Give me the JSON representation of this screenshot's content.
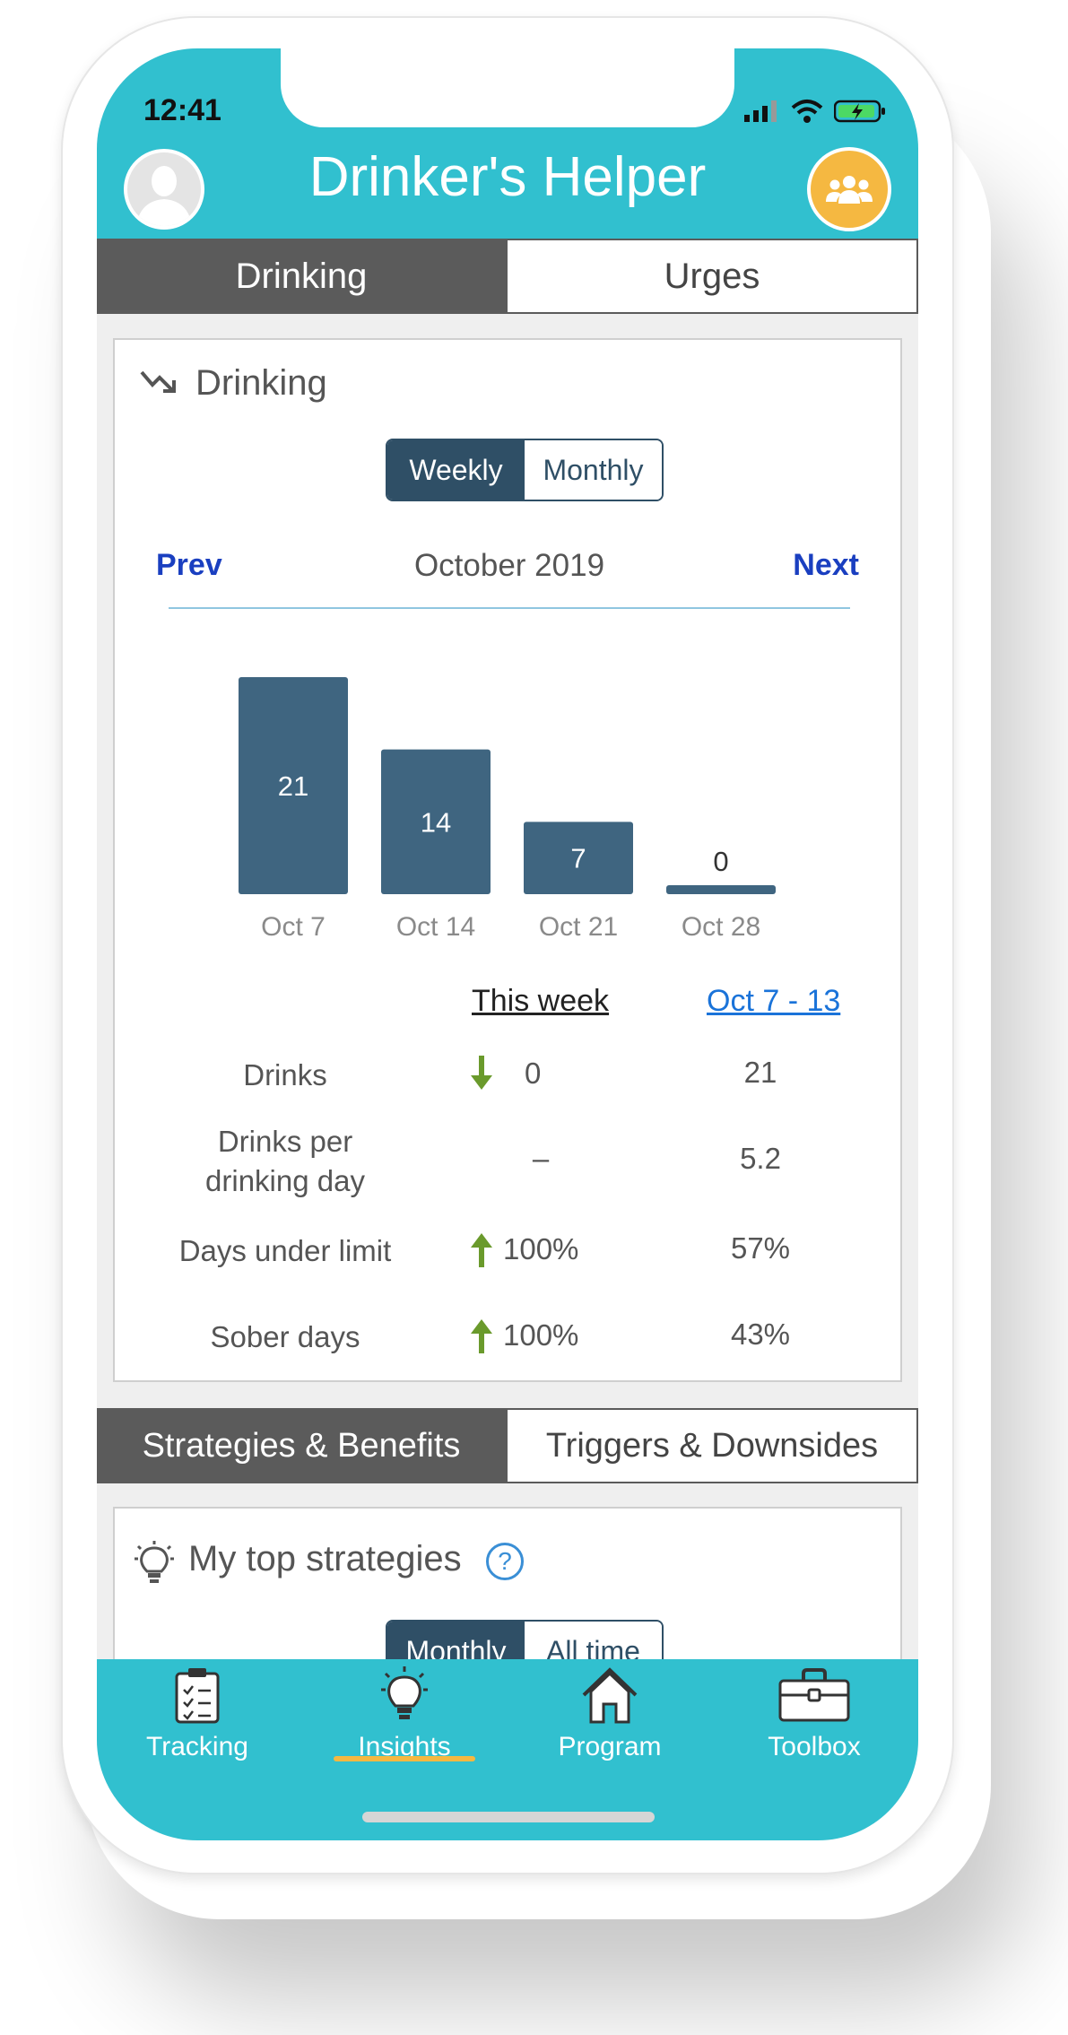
{
  "status": {
    "time": "12:41"
  },
  "app": {
    "title": "Drinker's Helper"
  },
  "top_tabs": [
    {
      "label": "Drinking",
      "active": true
    },
    {
      "label": "Urges",
      "active": false
    }
  ],
  "drinking_card": {
    "title": "Drinking",
    "toggle": [
      {
        "label": "Weekly",
        "active": true
      },
      {
        "label": "Monthly",
        "active": false
      }
    ],
    "prev_label": "Prev",
    "next_label": "Next",
    "period": "October 2019"
  },
  "chart_data": {
    "type": "bar",
    "categories": [
      "Oct 7",
      "Oct 14",
      "Oct 21",
      "Oct 28"
    ],
    "values": [
      21,
      14,
      7,
      0
    ],
    "bar_color": "#3f6580",
    "ylim": [
      0,
      21
    ]
  },
  "stats": {
    "col_current": "This week",
    "col_previous": "Oct 7 - 13",
    "rows": [
      {
        "label": "Drinks",
        "current": "0",
        "previous": "21",
        "trend": "down"
      },
      {
        "label": "Drinks per drinking day",
        "current": "–",
        "previous": "5.2",
        "trend": "none"
      },
      {
        "label": "Days under limit",
        "current": "100%",
        "previous": "57%",
        "trend": "up"
      },
      {
        "label": "Sober days",
        "current": "100%",
        "previous": "43%",
        "trend": "up"
      }
    ]
  },
  "section_tabs": [
    {
      "label": "Strategies & Benefits",
      "active": true
    },
    {
      "label": "Triggers & Downsides",
      "active": false
    }
  ],
  "strategies_card": {
    "title": "My top strategies",
    "help_label": "?",
    "toggle": [
      {
        "label": "Monthly",
        "active": true
      },
      {
        "label": "All time",
        "active": false
      }
    ]
  },
  "bottom_nav": [
    {
      "label": "Tracking",
      "icon": "clipboard-icon",
      "active": false
    },
    {
      "label": "Insights",
      "icon": "lightbulb-icon",
      "active": true
    },
    {
      "label": "Program",
      "icon": "home-icon",
      "active": false
    },
    {
      "label": "Toolbox",
      "icon": "toolbox-icon",
      "active": false
    }
  ],
  "colors": {
    "brand": "#31c0cf",
    "accent": "#f5b841",
    "dark_tab": "#5b5b5b",
    "toggle": "#2f4f66",
    "link": "#1a3fc0",
    "trend_arrow": "#6a9a2c"
  }
}
